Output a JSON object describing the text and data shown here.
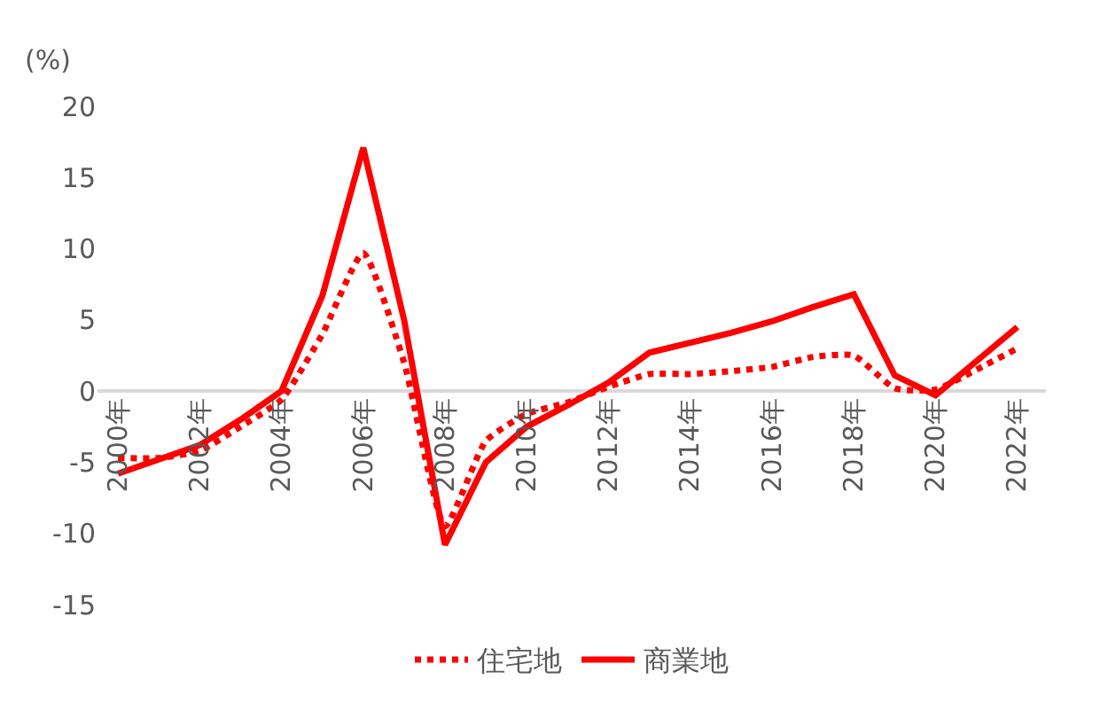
{
  "chart_data": {
    "type": "line",
    "ylabel": "(%)",
    "categories": [
      "2000年",
      null,
      "2002年",
      null,
      "2004年",
      null,
      "2006年",
      null,
      "2008年",
      null,
      "2010年",
      null,
      "2012年",
      null,
      "2014年",
      null,
      "2016年",
      null,
      "2018年",
      null,
      "2020年",
      null,
      "2022年"
    ],
    "series": [
      {
        "name": "住宅地",
        "color": "#ff0000",
        "line_style": "dotted",
        "values": [
          -4.7,
          -4.7,
          -4.2,
          -2.5,
          -0.6,
          4,
          9.7,
          2,
          -9.5,
          -3.5,
          -1.6,
          -0.8,
          0.3,
          1.2,
          1.2,
          1.4,
          1.7,
          2.4,
          2.5,
          0.2,
          0.1,
          1.5,
          3
        ]
      },
      {
        "name": "商業地",
        "color": "#ff0000",
        "line_style": "solid",
        "values": [
          -5.8,
          -4.8,
          -3.8,
          -2,
          0,
          6.7,
          17.1,
          5,
          -10.8,
          -5,
          -2.5,
          -1,
          0.6,
          2.7,
          3.4,
          4.1,
          4.9,
          5.9,
          6.8,
          1.1,
          -0.3,
          2.1,
          4.5
        ]
      }
    ],
    "ylim": [
      -15,
      20
    ],
    "yticks": [
      -15,
      -10,
      -5,
      0,
      5,
      10,
      15,
      20
    ],
    "legend": "bottom"
  }
}
